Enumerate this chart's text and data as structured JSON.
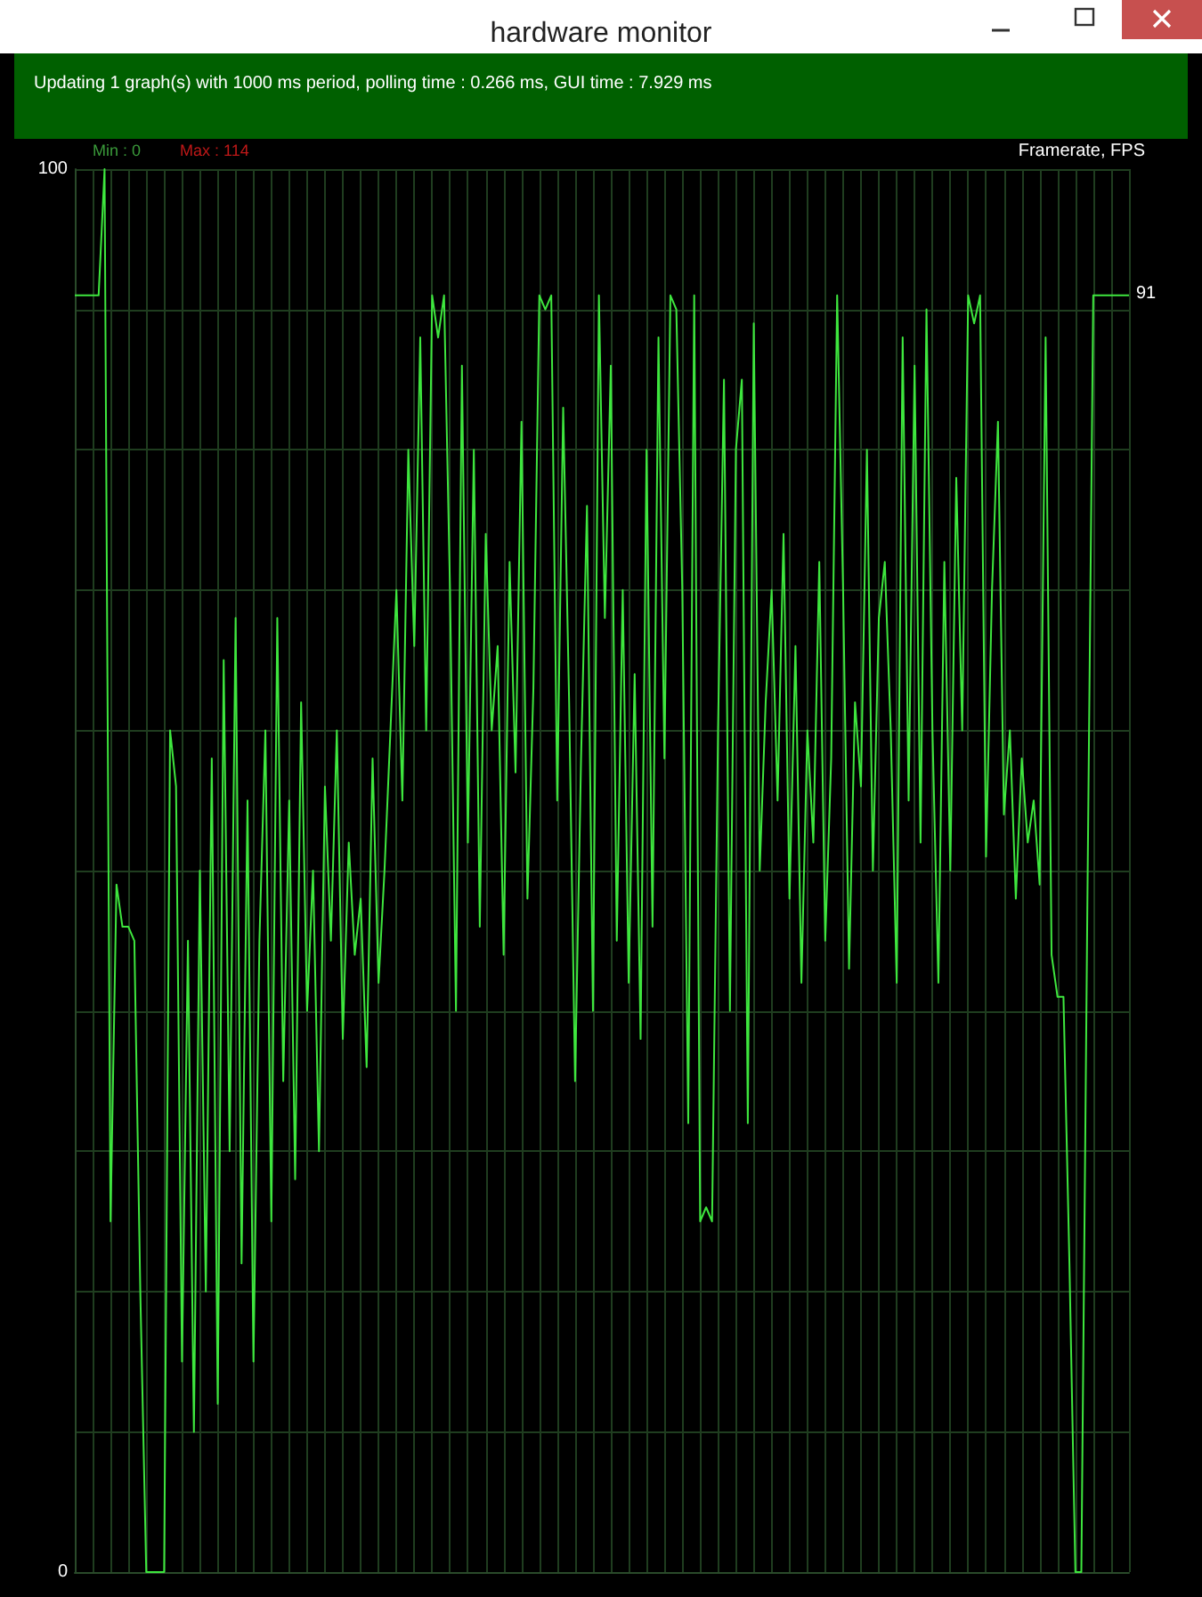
{
  "chart_data": {
    "type": "line",
    "title": "hardware monitor",
    "subtitle": "Updating 1 graph(s) with 1000 ms period, polling time : 0.266 ms, GUI time : 7.929 ms",
    "ylabel": "Framerate, FPS",
    "annotations": [
      "Min : 0",
      "Max : 114",
      "91"
    ],
    "categories": [
      null,
      null,
      null,
      null,
      null,
      null,
      null,
      null,
      null,
      null,
      null,
      null,
      null,
      null,
      null,
      null,
      null,
      null,
      null,
      null,
      null,
      null,
      null,
      null,
      null,
      null,
      null,
      null,
      null,
      null,
      null,
      null,
      null,
      null,
      null,
      null,
      null,
      null,
      null,
      null,
      null,
      null,
      null,
      null,
      null,
      null,
      null,
      null,
      null,
      null,
      null,
      null,
      null,
      null,
      null,
      null,
      null,
      null,
      null,
      null,
      null,
      null,
      null,
      null,
      null,
      null,
      null,
      null,
      null,
      null,
      null,
      null,
      null,
      null,
      null,
      null,
      null,
      null,
      null,
      null,
      null,
      null,
      null,
      null,
      null,
      null,
      null,
      null,
      null,
      null,
      null,
      null,
      null,
      null,
      null,
      null,
      null,
      null,
      null,
      null,
      null,
      null,
      null,
      null,
      null,
      null,
      null,
      null,
      null,
      null,
      null,
      null,
      null,
      null,
      null,
      null,
      null,
      null,
      null,
      null,
      null,
      null,
      null,
      null,
      null,
      null,
      null,
      null,
      null,
      null,
      null,
      null,
      null,
      null,
      null,
      null,
      null,
      null,
      null,
      null,
      null,
      null,
      null,
      null,
      null,
      null,
      null,
      null,
      null,
      null,
      null,
      null,
      null,
      null,
      null,
      null,
      null,
      null,
      null,
      null,
      null,
      null,
      null,
      null,
      null,
      null,
      null,
      null,
      null,
      null,
      null,
      null,
      null,
      null,
      null,
      null,
      null,
      null
    ],
    "series": [
      {
        "color": "#3ee63e",
        "values": [
          91,
          91,
          91,
          91,
          91,
          100,
          25,
          49,
          46,
          46,
          45,
          20,
          0,
          0,
          0,
          0,
          60,
          56,
          15,
          45,
          10,
          50,
          20,
          58,
          12,
          65,
          30,
          68,
          22,
          55,
          15,
          45,
          60,
          25,
          68,
          35,
          55,
          28,
          62,
          40,
          50,
          30,
          56,
          45,
          60,
          38,
          52,
          44,
          48,
          36,
          58,
          42,
          50,
          60,
          70,
          55,
          80,
          66,
          88,
          60,
          91,
          88,
          91,
          70,
          40,
          86,
          52,
          80,
          46,
          74,
          60,
          66,
          44,
          72,
          57,
          82,
          48,
          63,
          91,
          90,
          91,
          55,
          83,
          62,
          35,
          58,
          76,
          40,
          91,
          68,
          86,
          45,
          70,
          42,
          64,
          38,
          80,
          46,
          88,
          58,
          91,
          90,
          70,
          32,
          91,
          25,
          26,
          25,
          60,
          85,
          40,
          80,
          85,
          32,
          89,
          50,
          62,
          70,
          55,
          74,
          48,
          66,
          42,
          60,
          52,
          72,
          45,
          58,
          91,
          70,
          43,
          62,
          56,
          80,
          50,
          68,
          72,
          60,
          42,
          88,
          55,
          86,
          52,
          90,
          60,
          42,
          72,
          50,
          78,
          60,
          91,
          89,
          91,
          51,
          70,
          82,
          54,
          60,
          48,
          58,
          52,
          55,
          49,
          88,
          44,
          41,
          41,
          22,
          0,
          0,
          47,
          91,
          91,
          91,
          91,
          91,
          91,
          91
        ]
      }
    ],
    "ylim": [
      0,
      100
    ],
    "yticks": [
      0,
      {
        "value": 10,
        "label": null
      },
      {
        "value": 20,
        "label": null
      },
      {
        "value": 30,
        "label": null
      },
      {
        "value": 40,
        "label": null
      },
      {
        "value": 50,
        "label": null
      },
      {
        "value": 60,
        "label": null
      },
      {
        "value": 70,
        "label": null
      },
      {
        "value": 80,
        "label": null
      },
      {
        "value": 90,
        "label": null
      },
      100
    ],
    "grid": true
  }
}
